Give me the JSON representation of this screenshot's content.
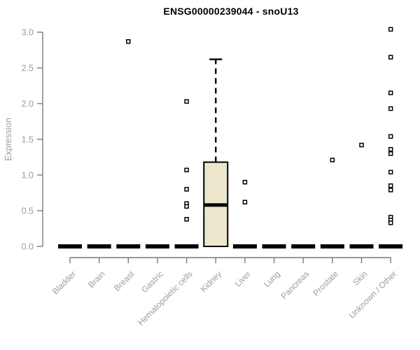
{
  "title": "ENSG00000239044 - snoU13",
  "colors": {
    "background": "#ffffff",
    "box_fill": "#ece7cc",
    "box_stroke": "#000000",
    "zero_bar": "#000000",
    "axis_line": "#7a7a7a",
    "tick_label": "#9c9c9c",
    "title_text": "#000000",
    "outlier_fill": "#ffffff",
    "outlier_stroke": "#000000"
  },
  "chart_data": {
    "type": "boxplot",
    "title": "ENSG00000239044 - snoU13",
    "xlabel": "",
    "ylabel": "Expression",
    "ylim": [
      0.0,
      3.0
    ],
    "yticks": [
      0.0,
      0.5,
      1.0,
      1.5,
      2.0,
      2.5,
      3.0
    ],
    "grid": false,
    "legend": null,
    "categories": [
      "Bladder",
      "Brain",
      "Breast",
      "Gastric",
      "Hematopoietic cells",
      "Kidney",
      "Liver",
      "Lung",
      "Pancreas",
      "Prostate",
      "Skin",
      "Unknown / Other"
    ],
    "boxes": [
      {
        "category": "Bladder",
        "q1": 0.0,
        "median": 0.0,
        "q3": 0.0,
        "whisker_low": 0.0,
        "whisker_high": 0.0,
        "outliers": []
      },
      {
        "category": "Brain",
        "q1": 0.0,
        "median": 0.0,
        "q3": 0.0,
        "whisker_low": 0.0,
        "whisker_high": 0.0,
        "outliers": []
      },
      {
        "category": "Breast",
        "q1": 0.0,
        "median": 0.0,
        "q3": 0.0,
        "whisker_low": 0.0,
        "whisker_high": 0.0,
        "outliers": [
          2.87
        ]
      },
      {
        "category": "Gastric",
        "q1": 0.0,
        "median": 0.0,
        "q3": 0.0,
        "whisker_low": 0.0,
        "whisker_high": 0.0,
        "outliers": []
      },
      {
        "category": "Hematopoietic cells",
        "q1": 0.0,
        "median": 0.0,
        "q3": 0.0,
        "whisker_low": 0.0,
        "whisker_high": 0.0,
        "outliers": [
          2.03,
          1.07,
          0.8,
          0.6,
          0.56,
          0.38
        ]
      },
      {
        "category": "Kidney",
        "q1": 0.0,
        "median": 0.58,
        "q3": 1.18,
        "whisker_low": 0.0,
        "whisker_high": 2.62,
        "outliers": []
      },
      {
        "category": "Liver",
        "q1": 0.0,
        "median": 0.0,
        "q3": 0.0,
        "whisker_low": 0.0,
        "whisker_high": 0.0,
        "outliers": [
          0.9,
          0.62
        ]
      },
      {
        "category": "Lung",
        "q1": 0.0,
        "median": 0.0,
        "q3": 0.0,
        "whisker_low": 0.0,
        "whisker_high": 0.0,
        "outliers": []
      },
      {
        "category": "Pancreas",
        "q1": 0.0,
        "median": 0.0,
        "q3": 0.0,
        "whisker_low": 0.0,
        "whisker_high": 0.0,
        "outliers": []
      },
      {
        "category": "Prostate",
        "q1": 0.0,
        "median": 0.0,
        "q3": 0.0,
        "whisker_low": 0.0,
        "whisker_high": 0.0,
        "outliers": [
          1.21
        ]
      },
      {
        "category": "Skin",
        "q1": 0.0,
        "median": 0.0,
        "q3": 0.0,
        "whisker_low": 0.0,
        "whisker_high": 0.0,
        "outliers": [
          1.42
        ]
      },
      {
        "category": "Unknown / Other",
        "q1": 0.0,
        "median": 0.0,
        "q3": 0.0,
        "whisker_low": 0.0,
        "whisker_high": 0.0,
        "outliers": [
          3.04,
          2.65,
          2.15,
          1.93,
          1.54,
          1.36,
          1.3,
          1.04,
          0.85,
          0.79,
          0.41,
          0.37,
          0.33
        ]
      }
    ]
  }
}
